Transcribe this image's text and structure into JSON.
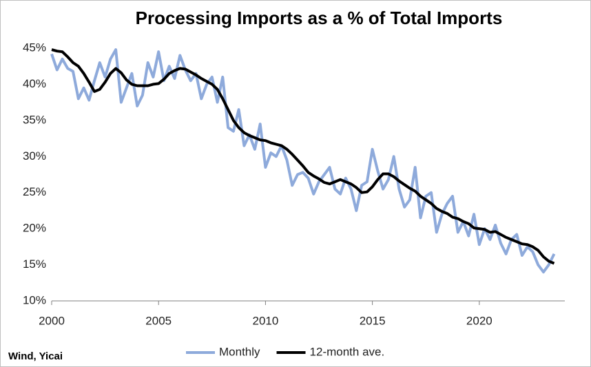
{
  "chart_data": {
    "type": "line",
    "title": "Processing Imports as a % of Total Imports",
    "source": "Wind, Yicai",
    "x": [
      2000,
      2000.25,
      2000.5,
      2000.75,
      2001,
      2001.25,
      2001.5,
      2001.75,
      2002,
      2002.25,
      2002.5,
      2002.75,
      2003,
      2003.25,
      2003.5,
      2003.75,
      2004,
      2004.25,
      2004.5,
      2004.75,
      2005,
      2005.25,
      2005.5,
      2005.75,
      2006,
      2006.25,
      2006.5,
      2006.75,
      2007,
      2007.25,
      2007.5,
      2007.75,
      2008,
      2008.25,
      2008.5,
      2008.75,
      2009,
      2009.25,
      2009.5,
      2009.75,
      2010,
      2010.25,
      2010.5,
      2010.75,
      2011,
      2011.25,
      2011.5,
      2011.75,
      2012,
      2012.25,
      2012.5,
      2012.75,
      2013,
      2013.25,
      2013.5,
      2013.75,
      2014,
      2014.25,
      2014.5,
      2014.75,
      2015,
      2015.25,
      2015.5,
      2015.75,
      2016,
      2016.25,
      2016.5,
      2016.75,
      2017,
      2017.25,
      2017.5,
      2017.75,
      2018,
      2018.25,
      2018.5,
      2018.75,
      2019,
      2019.25,
      2019.5,
      2019.75,
      2020,
      2020.25,
      2020.5,
      2020.75,
      2021,
      2021.25,
      2021.5,
      2021.75,
      2022,
      2022.25,
      2022.5,
      2022.75,
      2023,
      2023.25,
      2023.5
    ],
    "series": [
      {
        "name": "Monthly",
        "color": "#8eaadb",
        "width": 4,
        "values": [
          44.2,
          42.0,
          43.5,
          42.2,
          41.8,
          38.0,
          39.5,
          37.8,
          40.5,
          43.0,
          41.0,
          43.5,
          44.8,
          37.5,
          39.5,
          41.5,
          37.0,
          38.5,
          43.0,
          41.0,
          44.5,
          40.5,
          42.5,
          40.8,
          44.0,
          42.0,
          40.5,
          41.5,
          38.0,
          40.0,
          41.0,
          37.5,
          41.0,
          34.0,
          33.5,
          36.5,
          31.5,
          33.0,
          31.0,
          34.5,
          28.5,
          30.5,
          30.0,
          31.5,
          29.5,
          26.0,
          27.5,
          27.8,
          27.0,
          24.8,
          26.5,
          27.5,
          28.5,
          25.5,
          24.8,
          27.0,
          25.5,
          22.5,
          26.0,
          26.5,
          31.0,
          28.0,
          25.5,
          26.8,
          30.0,
          25.5,
          23.0,
          24.0,
          28.5,
          21.5,
          24.5,
          25.0,
          19.5,
          22.0,
          23.5,
          24.5,
          19.5,
          21.0,
          19.0,
          22.0,
          17.8,
          20.0,
          18.5,
          20.5,
          18.0,
          16.5,
          18.5,
          19.2,
          16.3,
          17.5,
          16.8,
          15.0,
          14.0,
          15.0,
          16.5
        ]
      },
      {
        "name": "12-month ave.",
        "color": "#000000",
        "width": 4,
        "values": [
          44.8,
          44.6,
          44.5,
          43.8,
          43.0,
          42.5,
          41.5,
          40.3,
          39.0,
          39.3,
          40.3,
          41.5,
          42.2,
          41.6,
          40.6,
          40.0,
          39.8,
          39.8,
          39.8,
          40.0,
          40.1,
          40.7,
          41.5,
          41.9,
          42.2,
          42.1,
          41.7,
          41.3,
          40.8,
          40.4,
          40.0,
          39.3,
          38.0,
          36.5,
          35.0,
          34.0,
          33.3,
          32.9,
          32.6,
          32.3,
          32.2,
          31.9,
          31.7,
          31.5,
          31.0,
          30.3,
          29.5,
          28.7,
          27.8,
          27.3,
          26.9,
          26.4,
          26.2,
          26.5,
          26.8,
          26.5,
          26.2,
          25.7,
          25.0,
          25.1,
          25.8,
          26.8,
          27.6,
          27.6,
          27.2,
          26.6,
          26.1,
          25.6,
          25.2,
          24.5,
          24.0,
          23.5,
          22.8,
          22.4,
          22.1,
          21.6,
          21.4,
          21.0,
          20.7,
          20.1,
          20.0,
          19.9,
          19.5,
          19.6,
          19.2,
          18.8,
          18.5,
          18.2,
          17.9,
          17.8,
          17.5,
          17.0,
          16.1,
          15.5,
          15.2
        ]
      }
    ],
    "xlim": [
      2000,
      2024
    ],
    "xticks": [
      2000,
      2005,
      2010,
      2015,
      2020
    ],
    "ylim": [
      10,
      45
    ],
    "yticks": [
      {
        "value": 10,
        "label": "10%"
      },
      {
        "value": 15,
        "label": "15%"
      },
      {
        "value": 20,
        "label": "20%"
      },
      {
        "value": 25,
        "label": "25%"
      },
      {
        "value": 30,
        "label": "30%"
      },
      {
        "value": 35,
        "label": "35%"
      },
      {
        "value": 40,
        "label": "40%"
      },
      {
        "value": 45,
        "label": "45%"
      }
    ],
    "grid": false,
    "legend": "bottom"
  }
}
